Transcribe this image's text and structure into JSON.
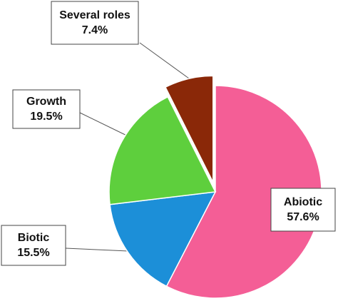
{
  "chart_data": {
    "type": "pie",
    "categories": [
      "Abiotic",
      "Biotic",
      "Growth",
      "Several roles"
    ],
    "values": [
      57.6,
      15.5,
      19.5,
      7.4
    ],
    "value_labels": [
      "57.6%",
      "15.5%",
      "19.5%",
      "7.4%"
    ],
    "colors": [
      "#f45e96",
      "#1c8fd8",
      "#5ecf3d",
      "#8a2808"
    ],
    "explode": [
      false,
      false,
      false,
      true
    ]
  }
}
